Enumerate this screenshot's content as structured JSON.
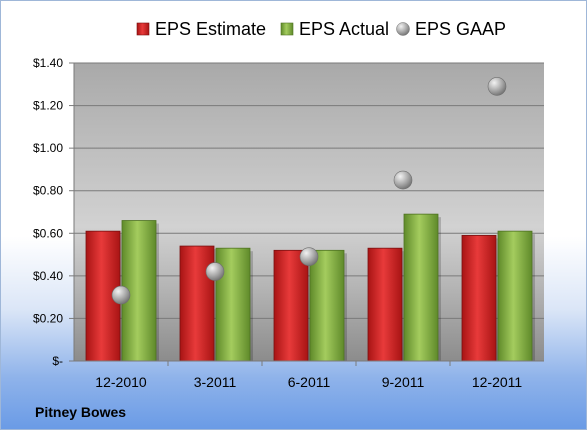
{
  "chart_data": {
    "type": "bar",
    "categories": [
      "12-2010",
      "3-2011",
      "6-2011",
      "9-2011",
      "12-2011"
    ],
    "series": [
      {
        "name": "EPS Estimate",
        "values": [
          0.61,
          0.54,
          0.52,
          0.53,
          0.59
        ],
        "color": "#d42a2a"
      },
      {
        "name": "EPS Actual",
        "values": [
          0.66,
          0.53,
          0.52,
          0.69,
          0.61
        ],
        "color": "#8fb849"
      },
      {
        "name": "EPS GAAP",
        "values": [
          0.31,
          0.42,
          0.49,
          0.85,
          1.29
        ],
        "color": "#b0b0b0",
        "marker": "circle"
      }
    ],
    "ylim": [
      0,
      1.4
    ],
    "yticks": [
      0,
      0.2,
      0.4,
      0.6,
      0.8,
      1.0,
      1.2,
      1.4
    ],
    "ytick_labels": [
      "$-",
      "$0.20",
      "$0.40",
      "$0.60",
      "$0.80",
      "$1.00",
      "$1.20",
      "$1.40"
    ],
    "grid": true,
    "legend_position": "top",
    "title": "",
    "xlabel": "",
    "ylabel": ""
  },
  "footer": {
    "company": "Pitney Bowes"
  }
}
